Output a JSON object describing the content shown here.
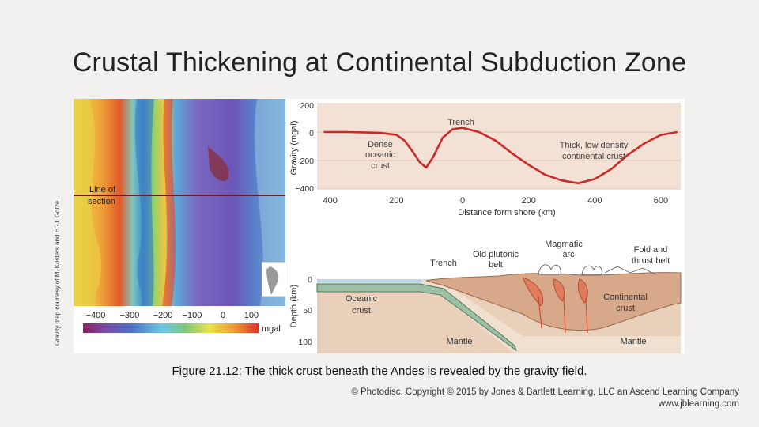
{
  "title": "Crustal Thickening at Continental Subduction Zone",
  "side_credit": "Gravity map courtesy of M. Kösters and H.-J. Götze",
  "map": {
    "line_label_1": "Line of",
    "line_label_2": "section",
    "colorbar_ticks": [
      "−400",
      "−300",
      "−200",
      "−100",
      "0",
      "100"
    ],
    "colorbar_unit": "mgal"
  },
  "gravity_plot": {
    "ylabel": "Gravity (mgal)",
    "xlabel": "Distance form shore (km)",
    "y_ticks": [
      "200",
      "0",
      "−200",
      "−400"
    ],
    "x_ticks": [
      "400",
      "200",
      "0",
      "200",
      "400",
      "600"
    ],
    "label_trench": "Trench",
    "label_dense_1": "Dense",
    "label_dense_2": "oceanic",
    "label_dense_3": "crust",
    "label_thick_1": "Thick, low density",
    "label_thick_2": "continental crust"
  },
  "cross_section": {
    "ylabel": "Depth (km)",
    "y_ticks": [
      "0",
      "50",
      "100"
    ],
    "label_trench": "Trench",
    "label_old_plutonic_1": "Old plutonic",
    "label_old_plutonic_2": "belt",
    "label_magmatic_1": "Magmatic",
    "label_magmatic_2": "arc",
    "label_fold_1": "Fold and",
    "label_fold_2": "thrust belt",
    "label_oceanic_1": "Oceanic",
    "label_oceanic_2": "crust",
    "label_continental_1": "Continental",
    "label_continental_2": "crust",
    "label_mantle_left": "Mantle",
    "label_mantle_right": "Mantle"
  },
  "chart_data": {
    "type": "line",
    "ylabel": "Gravity (mgal)",
    "xlabel": "Distance form shore (km)",
    "x_tick_labels": [
      "400",
      "200",
      "0",
      "200",
      "400",
      "600"
    ],
    "ylim": [
      -400,
      200
    ],
    "series": [
      {
        "x": [
          -420,
          -350,
          -300,
          -250,
          -200,
          -175,
          -150,
          -130,
          -110,
          -90,
          -60,
          -30,
          0,
          50,
          100,
          150,
          200,
          250,
          300,
          350,
          400,
          450,
          500,
          550,
          600,
          650
        ],
        "values": [
          0,
          0,
          -2,
          -5,
          -20,
          -60,
          -140,
          -210,
          -250,
          -180,
          -40,
          20,
          30,
          0,
          -60,
          -150,
          -230,
          -300,
          -340,
          -360,
          -330,
          -260,
          -160,
          -80,
          -20,
          0
        ]
      }
    ]
  },
  "caption": "Figure 21.12: The thick crust beneath the Andes is revealed by the gravity field.",
  "copyright_1": "© Photodisc. Copyright © 2015 by Jones & Bartlett Learning, LLC an Ascend Learning Company",
  "copyright_2": "www.jblearning.com"
}
